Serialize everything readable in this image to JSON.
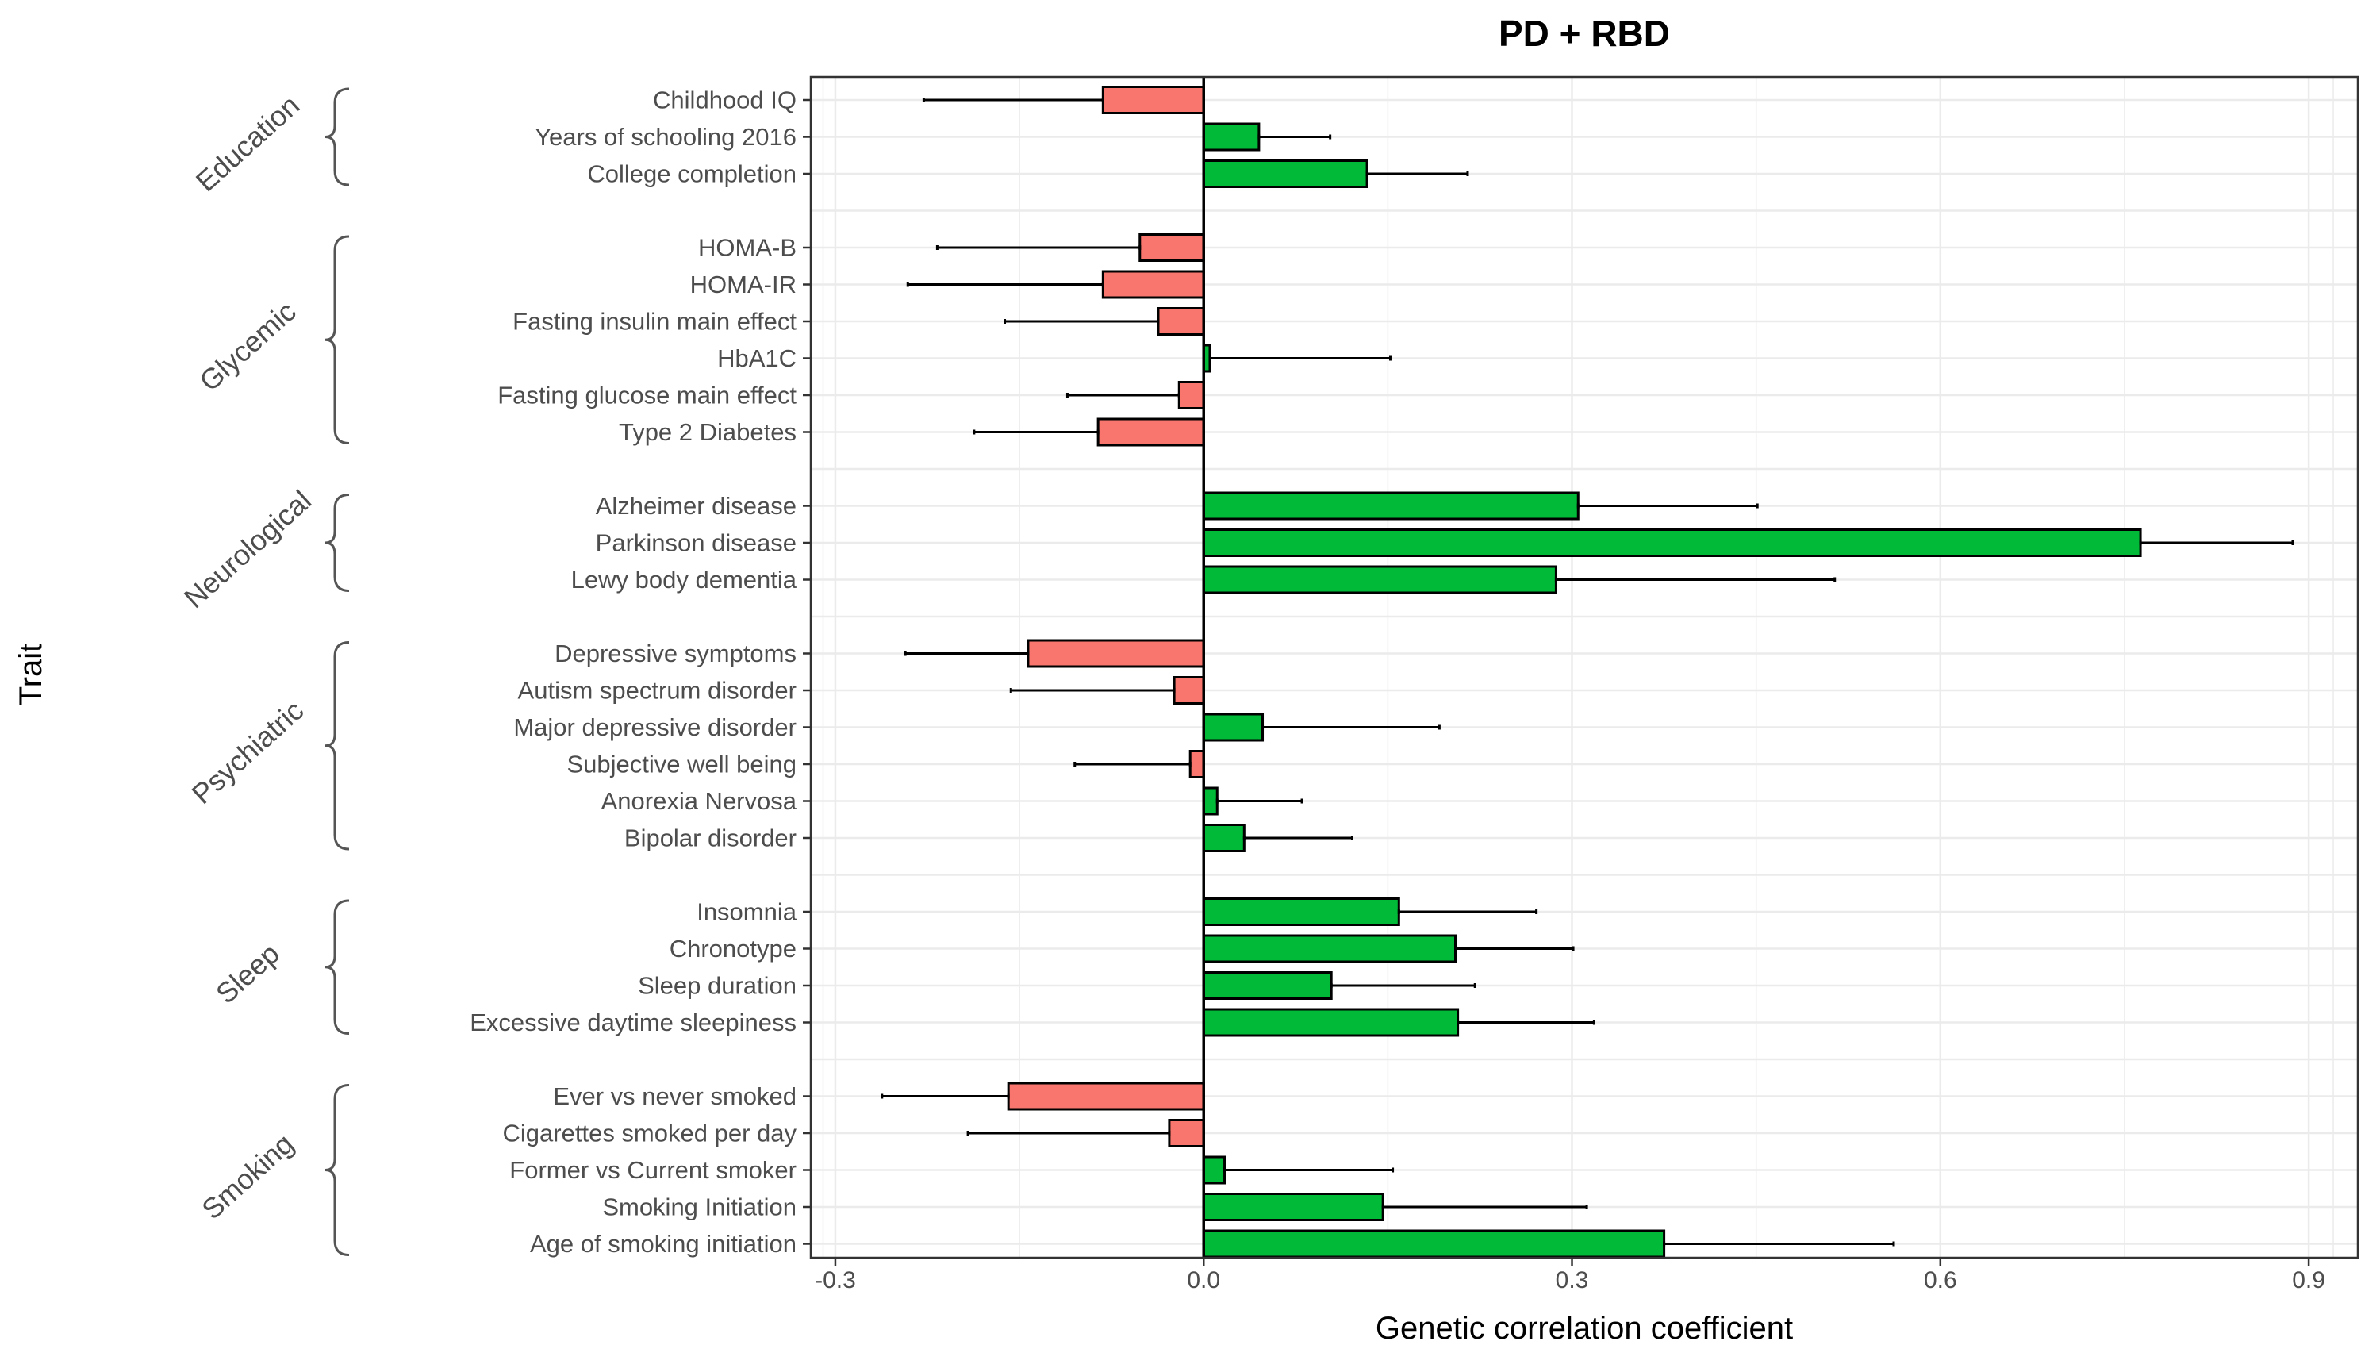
{
  "chart_data": {
    "type": "bar",
    "orientation": "horizontal",
    "title": "PD + RBD",
    "xlabel": "Genetic correlation coefficient",
    "ylabel": "Trait",
    "xlim": [
      -0.32,
      0.94
    ],
    "xticks": [
      "-0.3",
      "0.0",
      "0.3",
      "0.6",
      "0.9"
    ],
    "xtick_values": [
      -0.3,
      0.0,
      0.3,
      0.6,
      0.9
    ],
    "grid": true,
    "colors": {
      "negative": "#F8766D",
      "positive": "#00BA38",
      "outline": "#000000",
      "grid": "#EBEBEB"
    },
    "groups": [
      {
        "name": "Education",
        "traits": [
          {
            "label": "Childhood IQ",
            "value": -0.082,
            "ci_low": -0.228,
            "ci_high": -0.082
          },
          {
            "label": "Years of schooling 2016",
            "value": 0.045,
            "ci_low": 0.045,
            "ci_high": 0.103
          },
          {
            "label": "College completion",
            "value": 0.133,
            "ci_low": 0.133,
            "ci_high": 0.215
          }
        ]
      },
      {
        "name": "Glycemic",
        "traits": [
          {
            "label": "HOMA-B",
            "value": -0.052,
            "ci_low": -0.217,
            "ci_high": -0.052
          },
          {
            "label": "HOMA-IR",
            "value": -0.082,
            "ci_low": -0.241,
            "ci_high": -0.082
          },
          {
            "label": "Fasting insulin main effect",
            "value": -0.037,
            "ci_low": -0.162,
            "ci_high": -0.037
          },
          {
            "label": "HbA1C",
            "value": 0.005,
            "ci_low": 0.005,
            "ci_high": 0.152
          },
          {
            "label": "Fasting glucose main effect",
            "value": -0.02,
            "ci_low": -0.111,
            "ci_high": -0.02
          },
          {
            "label": "Type 2 Diabetes",
            "value": -0.086,
            "ci_low": -0.187,
            "ci_high": -0.086
          }
        ]
      },
      {
        "name": "Neurological",
        "traits": [
          {
            "label": "Alzheimer disease",
            "value": 0.305,
            "ci_low": 0.305,
            "ci_high": 0.451
          },
          {
            "label": "Parkinson disease",
            "value": 0.763,
            "ci_low": 0.763,
            "ci_high": 0.887
          },
          {
            "label": "Lewy body dementia",
            "value": 0.287,
            "ci_low": 0.287,
            "ci_high": 0.514
          }
        ]
      },
      {
        "name": "Psychiatric",
        "traits": [
          {
            "label": "Depressive symptoms",
            "value": -0.143,
            "ci_low": -0.243,
            "ci_high": -0.143
          },
          {
            "label": "Autism spectrum disorder",
            "value": -0.024,
            "ci_low": -0.157,
            "ci_high": -0.024
          },
          {
            "label": "Major depressive disorder",
            "value": 0.048,
            "ci_low": 0.048,
            "ci_high": 0.192
          },
          {
            "label": "Subjective well being",
            "value": -0.011,
            "ci_low": -0.105,
            "ci_high": -0.011
          },
          {
            "label": "Anorexia Nervosa",
            "value": 0.011,
            "ci_low": 0.011,
            "ci_high": 0.08
          },
          {
            "label": "Bipolar disorder",
            "value": 0.033,
            "ci_low": 0.033,
            "ci_high": 0.121
          }
        ]
      },
      {
        "name": "Sleep",
        "traits": [
          {
            "label": "Insomnia",
            "value": 0.159,
            "ci_low": 0.159,
            "ci_high": 0.271
          },
          {
            "label": "Chronotype",
            "value": 0.205,
            "ci_low": 0.205,
            "ci_high": 0.301
          },
          {
            "label": "Sleep duration",
            "value": 0.104,
            "ci_low": 0.104,
            "ci_high": 0.221
          },
          {
            "label": "Excessive daytime sleepiness",
            "value": 0.207,
            "ci_low": 0.207,
            "ci_high": 0.318
          }
        ]
      },
      {
        "name": "Smoking",
        "traits": [
          {
            "label": "Ever vs never smoked",
            "value": -0.159,
            "ci_low": -0.262,
            "ci_high": -0.159
          },
          {
            "label": "Cigarettes smoked per day",
            "value": -0.028,
            "ci_low": -0.192,
            "ci_high": -0.028
          },
          {
            "label": "Former vs Current smoker",
            "value": 0.017,
            "ci_low": 0.017,
            "ci_high": 0.154
          },
          {
            "label": "Smoking Initiation",
            "value": 0.146,
            "ci_low": 0.146,
            "ci_high": 0.312
          },
          {
            "label": "Age of smoking initiation",
            "value": 0.375,
            "ci_low": 0.375,
            "ci_high": 0.562
          }
        ]
      }
    ]
  }
}
